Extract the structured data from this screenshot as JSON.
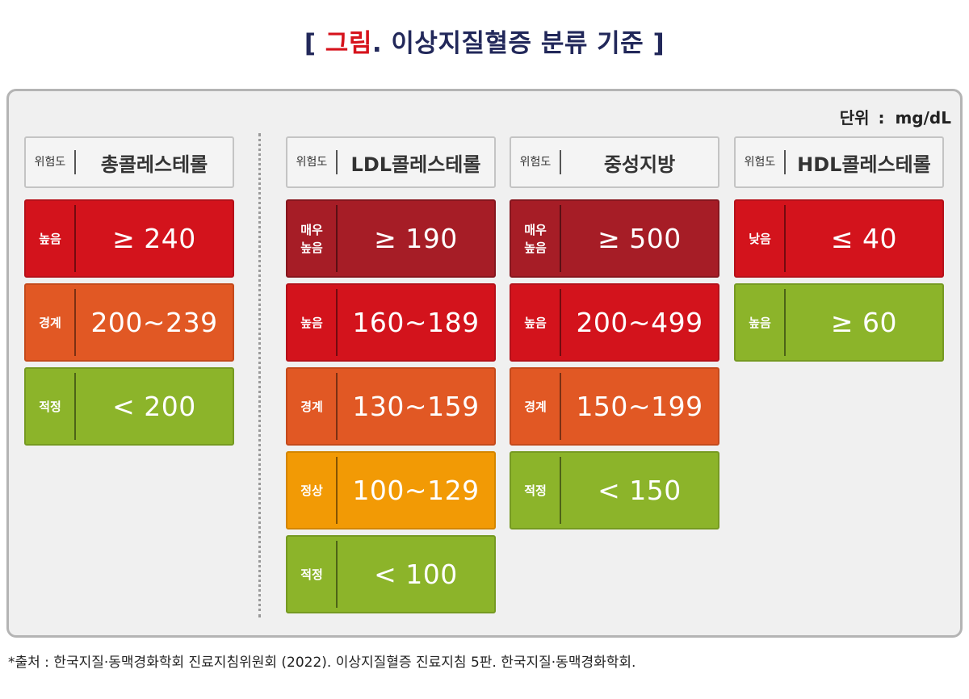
{
  "title": {
    "open": "[ ",
    "accent": "그림",
    "rest": ". 이상지질혈증 분류 기준 ]"
  },
  "unit": {
    "label": "단위",
    "sep": ":",
    "value": "mg/dL"
  },
  "risk_header": "위험도",
  "columns": [
    {
      "name": "총콜레스테롤",
      "rows": [
        {
          "level": "높음",
          "value": "≥ 240",
          "color": "#d3131c",
          "border": "#b5111a"
        },
        {
          "level": "경계",
          "value": "200~239",
          "color": "#e15824",
          "border": "#c44a1c"
        },
        {
          "level": "적정",
          "value": "< 200",
          "color": "#8cb42a",
          "border": "#769a22"
        }
      ]
    },
    {
      "name": "LDL콜레스테롤",
      "rows": [
        {
          "level": "매우\n높음",
          "value": "≥ 190",
          "color": "#a61d26",
          "border": "#86161e"
        },
        {
          "level": "높음",
          "value": "160~189",
          "color": "#d3131c",
          "border": "#b5111a"
        },
        {
          "level": "경계",
          "value": "130~159",
          "color": "#e15824",
          "border": "#c44a1c"
        },
        {
          "level": "정상",
          "value": "100~129",
          "color": "#f29a05",
          "border": "#d48600"
        },
        {
          "level": "적정",
          "value": "< 100",
          "color": "#8cb42a",
          "border": "#769a22"
        }
      ]
    },
    {
      "name": "중성지방",
      "rows": [
        {
          "level": "매우\n높음",
          "value": "≥ 500",
          "color": "#a61d26",
          "border": "#86161e"
        },
        {
          "level": "높음",
          "value": "200~499",
          "color": "#d3131c",
          "border": "#b5111a"
        },
        {
          "level": "경계",
          "value": "150~199",
          "color": "#e15824",
          "border": "#c44a1c"
        },
        {
          "level": "적정",
          "value": "< 150",
          "color": "#8cb42a",
          "border": "#769a22"
        }
      ]
    },
    {
      "name": "HDL콜레스테롤",
      "rows": [
        {
          "level": "낮음",
          "value": "≤ 40",
          "color": "#d3131c",
          "border": "#b5111a"
        },
        {
          "level": "높음",
          "value": "≥ 60",
          "color": "#8cb42a",
          "border": "#769a22"
        }
      ]
    }
  ],
  "footnote": "*출처 : 한국지질·동맥경화학회 진료지침위원회 (2022). 이상지질혈증 진료지침 5판. 한국지질·동맥경화학회."
}
